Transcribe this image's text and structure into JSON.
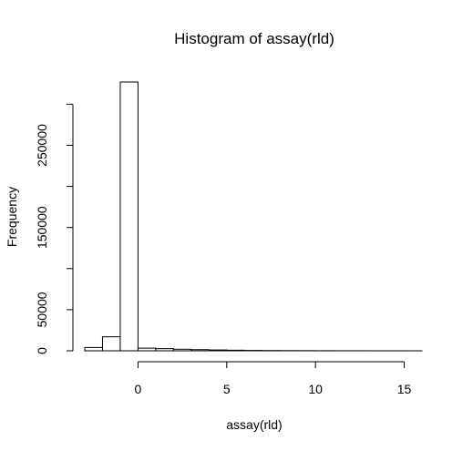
{
  "chart_data": {
    "type": "bar",
    "title": "Histogram of assay(rld)",
    "xlabel": "assay(rld)",
    "ylabel": "Frequency",
    "bin_width": 1,
    "bins": [
      {
        "from": -3,
        "to": -2,
        "count": 4000
      },
      {
        "from": -2,
        "to": -1,
        "count": 17000
      },
      {
        "from": -1,
        "to": 0,
        "count": 327000
      },
      {
        "from": 0,
        "to": 1,
        "count": 3200
      },
      {
        "from": 1,
        "to": 2,
        "count": 2600
      },
      {
        "from": 2,
        "to": 3,
        "count": 1900
      },
      {
        "from": 3,
        "to": 4,
        "count": 1400
      },
      {
        "from": 4,
        "to": 5,
        "count": 1000
      },
      {
        "from": 5,
        "to": 6,
        "count": 700
      },
      {
        "from": 6,
        "to": 7,
        "count": 450
      },
      {
        "from": 7,
        "to": 8,
        "count": 300
      },
      {
        "from": 8,
        "to": 9,
        "count": 200
      },
      {
        "from": 9,
        "to": 10,
        "count": 150
      },
      {
        "from": 10,
        "to": 11,
        "count": 100
      },
      {
        "from": 11,
        "to": 12,
        "count": 70
      },
      {
        "from": 12,
        "to": 13,
        "count": 50
      },
      {
        "from": 13,
        "to": 14,
        "count": 30
      },
      {
        "from": 14,
        "to": 15,
        "count": 20
      },
      {
        "from": 15,
        "to": 16,
        "count": 10
      }
    ],
    "xlim": [
      -3,
      16
    ],
    "ylim": [
      0,
      327000
    ],
    "x_ticks": [
      0,
      5,
      10,
      15
    ],
    "x_tick_labels": [
      "0",
      "5",
      "10",
      "15"
    ],
    "y_ticks": [
      0,
      50000,
      100000,
      150000,
      200000,
      250000,
      300000
    ],
    "y_tick_labels": [
      "0",
      "50000",
      "",
      "150000",
      "",
      "250000",
      ""
    ],
    "grid": false,
    "legend": "none"
  }
}
